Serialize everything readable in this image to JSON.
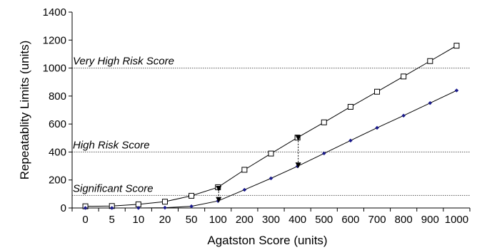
{
  "chart_data": {
    "type": "line",
    "categories": [
      "0",
      "5",
      "10",
      "20",
      "50",
      "100",
      "200",
      "300",
      "400",
      "500",
      "600",
      "700",
      "800",
      "900",
      "1000"
    ],
    "xlabel": "Agatston Score (units)",
    "ylabel": "Repeatablity Limits (units)",
    "ylim": [
      0,
      1400
    ],
    "yticks": [
      "0",
      "200",
      "400",
      "600",
      "800",
      "1000",
      "1200",
      "1400"
    ],
    "grid": false,
    "legend": "none",
    "series": [
      {
        "marker": "open-square",
        "color": "#000000",
        "values": [
          12,
          14,
          26,
          45,
          87,
          148,
          273,
          389,
          503,
          612,
          723,
          831,
          940,
          1050,
          1160
        ]
      },
      {
        "marker": "filled-diamond",
        "color": "#1a1a8c",
        "values": [
          0,
          0,
          0,
          2,
          12,
          50,
          130,
          212,
          298,
          390,
          482,
          573,
          660,
          750,
          840
        ]
      }
    ],
    "reference_lines": [
      {
        "label": "Very High Risk Score",
        "y": 1000
      },
      {
        "label": "High Risk Score",
        "y": 400
      },
      {
        "label": "Significant Score",
        "y": 90
      }
    ],
    "arrows": [
      {
        "category_index": 5,
        "from": 138,
        "to": 58
      },
      {
        "category_index": 8,
        "from": 500,
        "to": 305
      }
    ]
  }
}
